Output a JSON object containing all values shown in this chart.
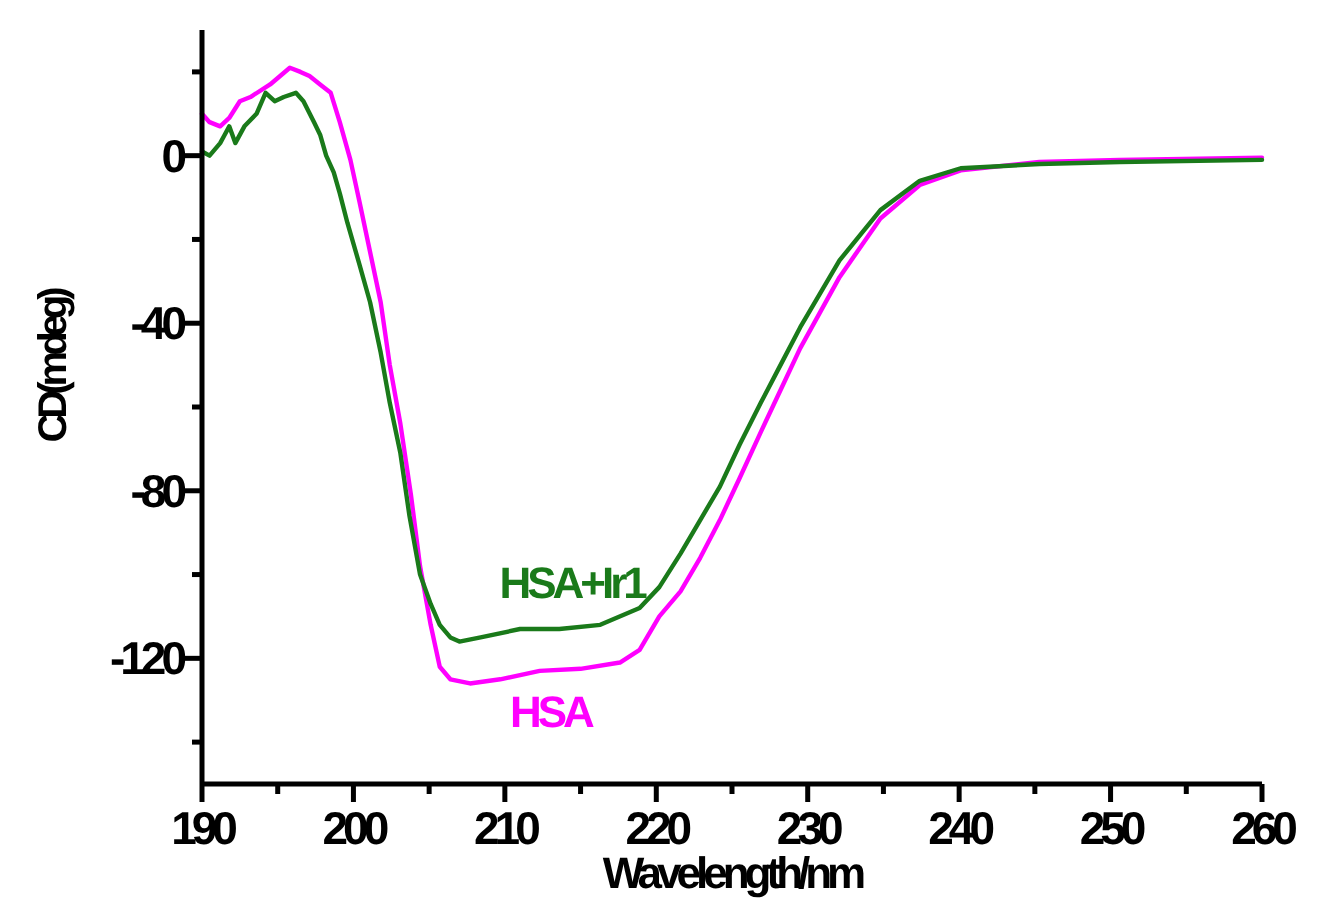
{
  "chart_data": {
    "type": "line",
    "xlabel": "Wavelength/nm",
    "ylabel": "CD(mdeg)",
    "xlim": [
      190,
      260
    ],
    "ylim": [
      -150,
      30
    ],
    "xticks": [
      190,
      {
        "value": 195,
        "label": null
      },
      200,
      {
        "value": 205,
        "label": null
      },
      210,
      {
        "value": 215,
        "label": null
      },
      220,
      {
        "value": 225,
        "label": null
      },
      230,
      {
        "value": 235,
        "label": null
      },
      240,
      {
        "value": 245,
        "label": null
      },
      250,
      {
        "value": 255,
        "label": null
      },
      260
    ],
    "yticks": [
      {
        "value": 20,
        "label": null
      },
      0,
      {
        "value": -20,
        "label": null
      },
      -40,
      {
        "value": -60,
        "label": null
      },
      -80,
      {
        "value": -100,
        "label": null
      },
      -120,
      {
        "value": -140,
        "label": null
      }
    ],
    "grid": false,
    "marker": "none",
    "line_style": "solid",
    "series": [
      {
        "name": "HSA",
        "color": "#ff00ff",
        "x": [
          190,
          190.5,
          191.2,
          191.8,
          192.5,
          193.2,
          194.5,
          195.8,
          196.5,
          197.1,
          197.8,
          198.5,
          199.1,
          199.8,
          200.4,
          201.1,
          201.8,
          202.4,
          203.1,
          203.8,
          204.4,
          205.1,
          205.7,
          206.4,
          207.7,
          209.7,
          212.3,
          215,
          217.6,
          218.9,
          220.2,
          221.6,
          222.9,
          224.2,
          225.5,
          226.9,
          228.2,
          229.5,
          232.1,
          234.8,
          237.4,
          240.1,
          245.3,
          250.6,
          260
        ],
        "values": [
          10,
          8,
          7,
          9,
          13,
          14,
          17,
          21,
          20,
          19,
          17,
          15,
          8,
          -1,
          -11,
          -23,
          -35,
          -50,
          -64,
          -81,
          -98,
          -112,
          -122,
          -125,
          -126,
          -125,
          -123,
          -122.5,
          -121,
          -118,
          -110,
          -104,
          -96,
          -87,
          -77,
          -66,
          -56,
          -46,
          -29,
          -15,
          -7,
          -3.5,
          -1.5,
          -1,
          -0.5
        ]
      },
      {
        "name": "HSA+Ir1",
        "color": "#1a7a1a",
        "x": [
          190,
          190.5,
          191.2,
          191.5,
          191.8,
          192.2,
          192.8,
          193.6,
          194.2,
          194.8,
          195.4,
          196.2,
          196.7,
          197.4,
          197.8,
          198.2,
          198.7,
          199.1,
          199.6,
          200.4,
          201.1,
          201.8,
          202.4,
          203.1,
          203.7,
          204.4,
          205.1,
          205.7,
          206.4,
          207,
          208.4,
          211,
          213.6,
          216.3,
          218.9,
          220.2,
          221.6,
          222.9,
          224.2,
          225.5,
          226.9,
          228.2,
          229.5,
          232.1,
          234.8,
          237.4,
          240.1,
          245.3,
          250.6,
          260
        ],
        "values": [
          1,
          0,
          3,
          5,
          7,
          3,
          7,
          10,
          15,
          13,
          14,
          15,
          13,
          8,
          5,
          0,
          -4,
          -9,
          -16,
          -26,
          -35,
          -47,
          -59,
          -71,
          -86,
          -100,
          -107,
          -112,
          -115,
          -116,
          -115,
          -113,
          -113,
          -112,
          -108,
          -103,
          -95,
          -87,
          -79,
          -69,
          -59,
          -50,
          -41,
          -25,
          -13,
          -6,
          -3,
          -2,
          -1.5,
          -1
        ]
      }
    ]
  }
}
